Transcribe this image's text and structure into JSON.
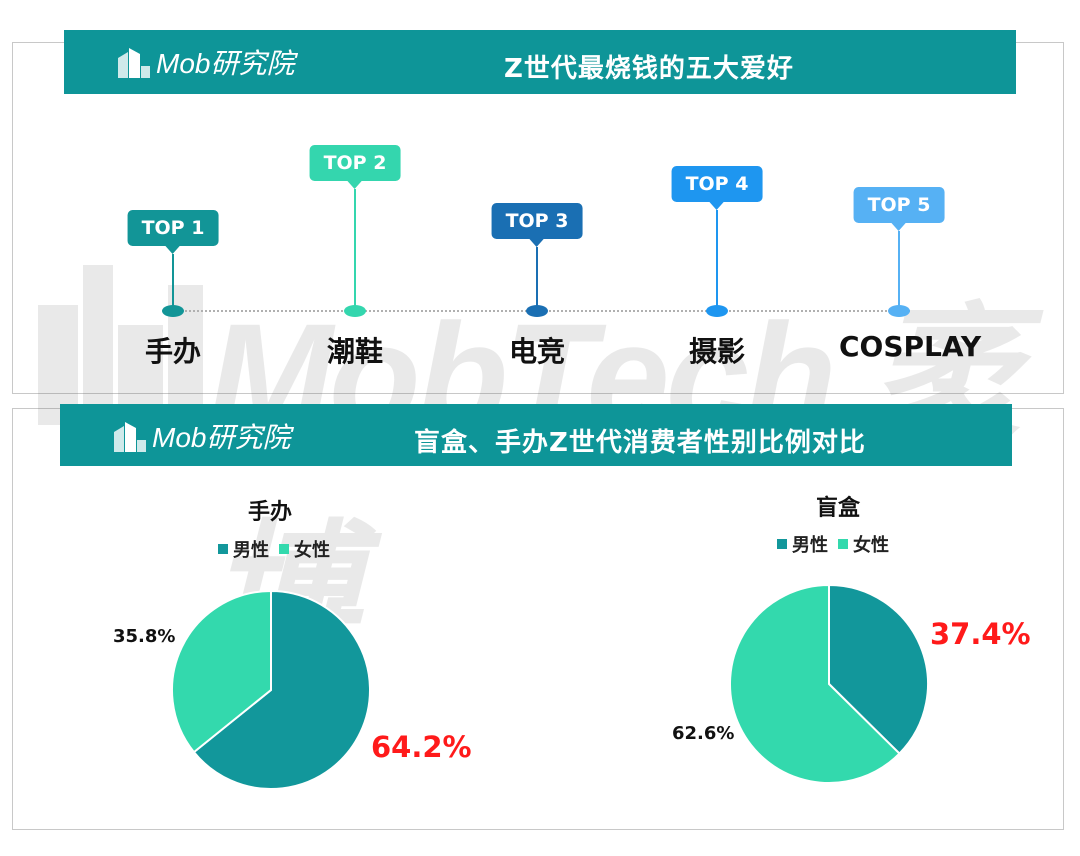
{
  "logo": {
    "text": "Mob研究院"
  },
  "top_section": {
    "title": "Z世代最烧钱的五大爱好",
    "hobbies": [
      {
        "rank": "TOP 1",
        "name": "手办",
        "color": "#129597"
      },
      {
        "rank": "TOP 2",
        "name": "潮鞋",
        "color": "#34d6ae"
      },
      {
        "rank": "TOP 3",
        "name": "电竞",
        "color": "#1a6fb3"
      },
      {
        "rank": "TOP 4",
        "name": "摄影",
        "color": "#1e96f0"
      },
      {
        "rank": "TOP 5",
        "name": "COSPLAY",
        "color": "#56b1f4"
      }
    ]
  },
  "watermark": {
    "text": "MobTech 袤博"
  },
  "bottom_section": {
    "title": "盲盒、手办Z世代消费者性别比例对比"
  },
  "colors": {
    "male": "#12979b",
    "female": "#33d9ad",
    "highlight": "#ff1a1a",
    "banner": "#0e9598"
  },
  "chart_data": [
    {
      "type": "pie",
      "title": "手办",
      "legend": [
        "男性",
        "女性"
      ],
      "slices": [
        {
          "name": "男性",
          "value": 64.2,
          "label": "64.2%"
        },
        {
          "name": "女性",
          "value": 35.8,
          "label": "35.8%"
        }
      ]
    },
    {
      "type": "pie",
      "title": "盲盒",
      "legend": [
        "男性",
        "女性"
      ],
      "slices": [
        {
          "name": "男性",
          "value": 37.4,
          "label": "37.4%"
        },
        {
          "name": "女性",
          "value": 62.6,
          "label": "62.6%"
        }
      ]
    }
  ]
}
